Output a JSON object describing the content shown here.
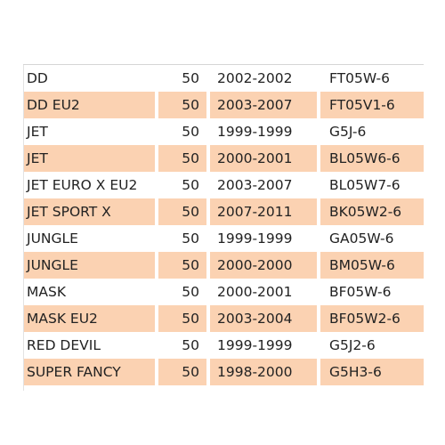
{
  "table": {
    "rows": [
      {
        "model": "DD",
        "cc": "50",
        "years": "2002-2002",
        "code": "FT05W-6"
      },
      {
        "model": "DD EU2",
        "cc": "50",
        "years": "2003-2007",
        "code": "FT05V1-6"
      },
      {
        "model": "JET",
        "cc": "50",
        "years": "1999-1999",
        "code": "G5J-6"
      },
      {
        "model": "JET",
        "cc": "50",
        "years": "2000-2001",
        "code": "BL05W6-6"
      },
      {
        "model": "JET EURO X EU2",
        "cc": "50",
        "years": "2003-2007",
        "code": "BL05W7-6"
      },
      {
        "model": "JET SPORT X",
        "cc": "50",
        "years": "2007-2011",
        "code": "BK05W2-6"
      },
      {
        "model": "JUNGLE",
        "cc": "50",
        "years": "1999-1999",
        "code": "GA05W-6"
      },
      {
        "model": "JUNGLE",
        "cc": "50",
        "years": "2000-2000",
        "code": "BM05W-6"
      },
      {
        "model": "MASK",
        "cc": "50",
        "years": "2000-2001",
        "code": "BF05W-6"
      },
      {
        "model": "MASK EU2",
        "cc": "50",
        "years": "2003-2004",
        "code": "BF05W2-6"
      },
      {
        "model": "RED DEVIL",
        "cc": "50",
        "years": "1999-1999",
        "code": "G5J2-6"
      },
      {
        "model": "SUPER FANCY",
        "cc": "50",
        "years": "1998-2000",
        "code": "G5H3-6"
      }
    ]
  },
  "colors": {
    "stripe": "#fbd2b2",
    "text": "#222222"
  }
}
